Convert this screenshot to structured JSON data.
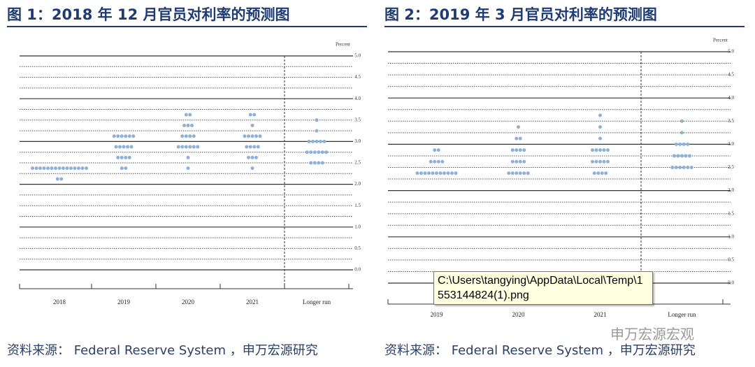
{
  "chart_data": [
    {
      "type": "dotplot",
      "title": "图 1：2018 年 12 月官员对利率的预测图",
      "y_label": "Percent",
      "categories": [
        "2018",
        "2019",
        "2020",
        "2021",
        "Longer run"
      ],
      "values": [
        [
          2.125,
          2.125,
          2.375,
          2.375,
          2.375,
          2.375,
          2.375,
          2.375,
          2.375,
          2.375,
          2.375,
          2.375,
          2.375,
          2.375,
          2.375,
          2.375,
          2.375
        ],
        [
          2.375,
          2.375,
          2.625,
          2.625,
          2.625,
          2.625,
          2.875,
          2.875,
          2.875,
          2.875,
          2.875,
          3.125,
          3.125,
          3.125,
          3.125,
          3.125,
          3.125
        ],
        [
          2.375,
          2.625,
          2.875,
          2.875,
          2.875,
          2.875,
          2.875,
          2.875,
          3.125,
          3.125,
          3.125,
          3.125,
          3.375,
          3.375,
          3.375,
          3.625,
          3.625
        ],
        [
          2.375,
          2.625,
          2.625,
          2.625,
          2.875,
          2.875,
          2.875,
          2.875,
          3.125,
          3.125,
          3.125,
          3.125,
          3.125,
          3.375,
          3.625,
          3.625
        ],
        [
          2.5,
          2.5,
          2.5,
          2.5,
          2.75,
          2.75,
          2.75,
          2.75,
          2.75,
          2.75,
          3.0,
          3.0,
          3.0,
          3.0,
          3.0,
          3.25,
          3.5
        ]
      ],
      "color": "#8fb0d8",
      "ylim": [
        0,
        5
      ],
      "yticks": [
        {
          "value": 0,
          "label": "0.0"
        },
        0.5,
        {
          "value": 1,
          "label": "1.0"
        },
        1.5,
        {
          "value": 2,
          "label": "2.0"
        },
        2.5,
        {
          "value": 3,
          "label": "3.0"
        },
        3.5,
        {
          "value": 4,
          "label": "4.0"
        },
        4.5,
        {
          "value": 5,
          "label": "5.0"
        }
      ],
      "source": "资料来源： Federal Reserve System ，申万宏源研究"
    },
    {
      "type": "dotplot",
      "title": "图 2：2019 年 3 月官员对利率的预测图",
      "y_label": "Percent",
      "categories": [
        "2019",
        "2020",
        "2021",
        "Longer run"
      ],
      "values": [
        [
          2.375,
          2.375,
          2.375,
          2.375,
          2.375,
          2.375,
          2.375,
          2.375,
          2.375,
          2.375,
          2.375,
          2.625,
          2.625,
          2.625,
          2.625,
          2.875,
          2.875
        ],
        [
          2.375,
          2.375,
          2.375,
          2.375,
          2.375,
          2.375,
          2.625,
          2.625,
          2.625,
          2.625,
          2.875,
          2.875,
          2.875,
          2.875,
          3.125,
          3.125,
          3.375
        ],
        [
          2.375,
          2.375,
          2.375,
          2.375,
          2.625,
          2.625,
          2.625,
          2.625,
          2.625,
          2.875,
          2.875,
          2.875,
          2.875,
          2.875,
          3.125,
          3.375,
          3.625
        ],
        [
          2.5,
          2.5,
          2.5,
          2.5,
          2.5,
          2.5,
          2.75,
          2.75,
          2.75,
          2.75,
          2.75,
          3.0,
          3.0,
          3.0,
          3.0,
          3.25,
          3.5
        ]
      ],
      "color": "#8fb0d8",
      "ylim": [
        0,
        5
      ],
      "yticks": [
        {
          "value": 0,
          "label": "0.0"
        },
        0.5,
        {
          "value": 1,
          "label": "1.0"
        },
        1.5,
        {
          "value": 2,
          "label": "2.0"
        },
        2.5,
        {
          "value": 3,
          "label": "3.0"
        },
        3.5,
        {
          "value": 4,
          "label": "4.0"
        },
        4.5,
        {
          "value": 5,
          "label": "5.0"
        }
      ],
      "source": "资料来源： Federal Reserve System ，申万宏源研究"
    }
  ],
  "tooltip": "C:\\Users\\tangying\\AppData\\Local\\Temp\\1553144824(1).png",
  "watermark": "申万宏源宏观"
}
